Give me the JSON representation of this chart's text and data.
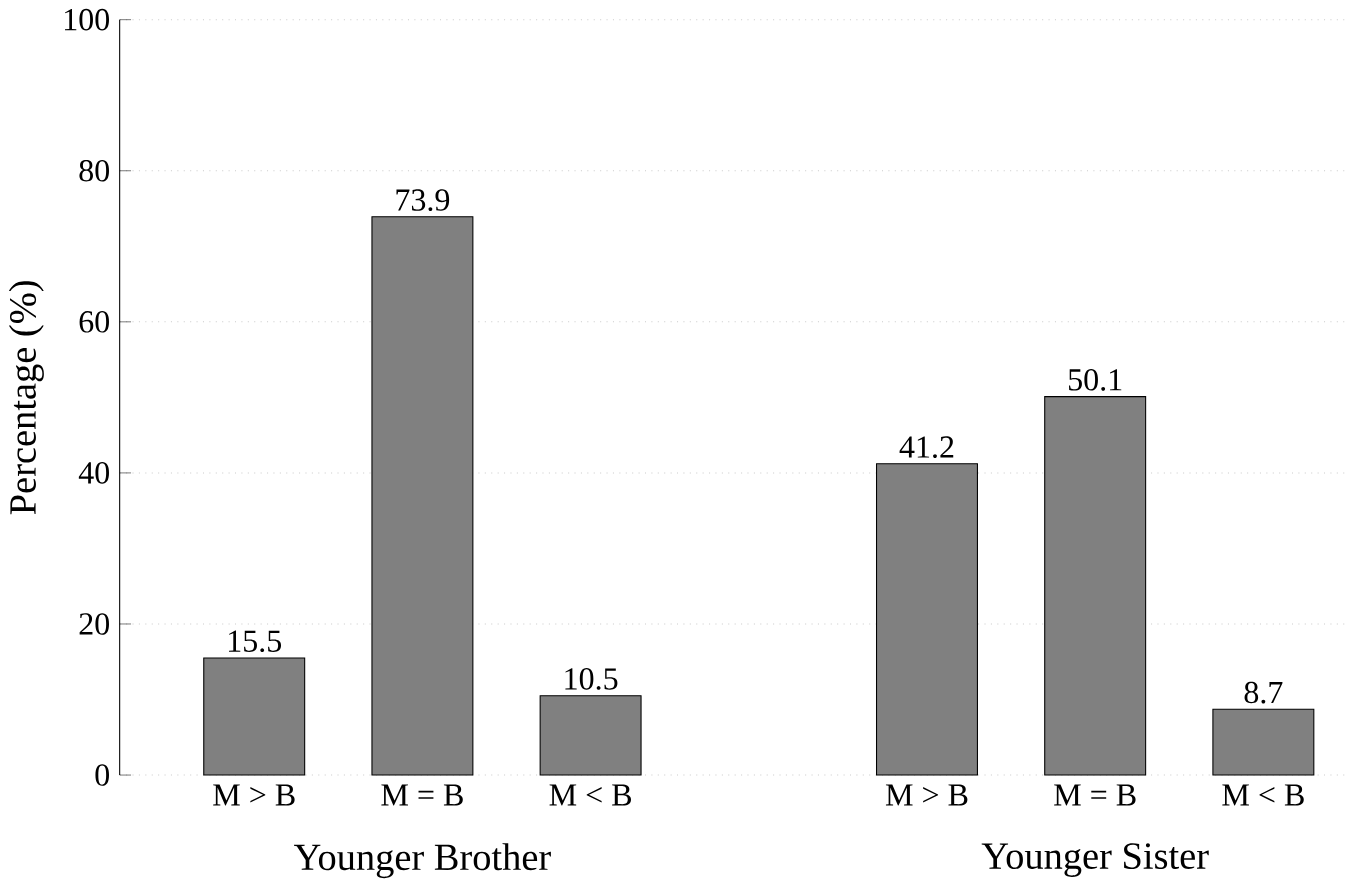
{
  "chart_data": {
    "type": "bar",
    "ylabel": "Percentage (%)",
    "categories": [
      "M > B",
      "M = B",
      "M < B",
      null,
      "M > B",
      "M = B",
      "M < B"
    ],
    "values": [
      15.5,
      73.9,
      10.5,
      null,
      41.2,
      50.1,
      8.7
    ],
    "color": "#808080",
    "ylim": [
      0,
      100
    ],
    "yticks": [
      0,
      20,
      40,
      60,
      80,
      100
    ],
    "grid": "y",
    "data_labels": true,
    "annotations": [
      "Younger Brother",
      "Younger Sister"
    ]
  }
}
